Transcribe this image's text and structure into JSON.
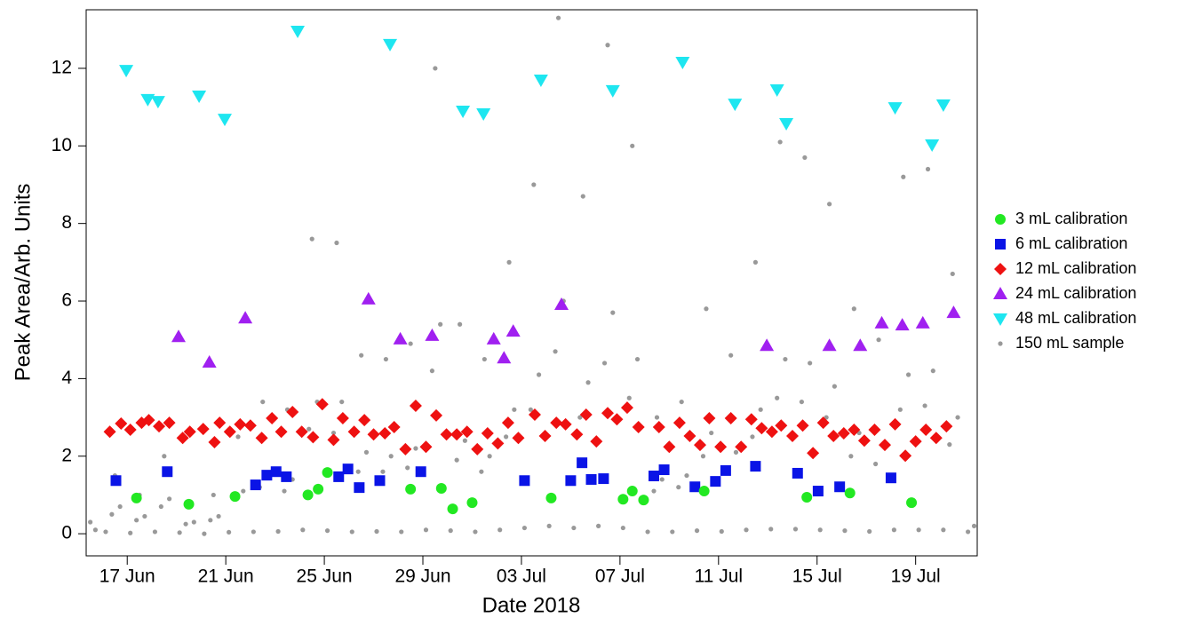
{
  "chart_data": {
    "type": "scatter",
    "xlabel": "Date 2018",
    "ylabel": "Peak Area/Arb. Units",
    "xlim": [
      "2018-06-15 08:00",
      "2018-07-21 12:00"
    ],
    "xticks": [
      {
        "value": "2018-06-17",
        "label": "17 Jun"
      },
      {
        "value": "2018-06-21",
        "label": "21 Jun"
      },
      {
        "value": "2018-06-25",
        "label": "25 Jun"
      },
      {
        "value": "2018-06-29",
        "label": "29 Jun"
      },
      {
        "value": "2018-07-03",
        "label": "03 Jul"
      },
      {
        "value": "2018-07-07",
        "label": "07 Jul"
      },
      {
        "value": "2018-07-11",
        "label": "11 Jul"
      },
      {
        "value": "2018-07-15",
        "label": "15 Jul"
      },
      {
        "value": "2018-07-19",
        "label": "19 Jul"
      }
    ],
    "ylim": [
      -0.57,
      13.51
    ],
    "yticks": [
      0,
      2,
      4,
      6,
      8,
      10,
      12
    ],
    "series": [
      {
        "name": "3 mL calibration",
        "color": "#22e822",
        "marker": "circle",
        "x": [
          "2018-06-17 09:00",
          "2018-06-19 12:00",
          "2018-06-21 09:00",
          "2018-06-24 08:00",
          "2018-06-24 18:00",
          "2018-06-25 03:00",
          "2018-06-28 12:00",
          "2018-06-29 18:00",
          "2018-06-30 05:00",
          "2018-07-01 00:00",
          "2018-07-04 05:00",
          "2018-07-07 03:00",
          "2018-07-07 12:00",
          "2018-07-07 23:00",
          "2018-07-10 10:00",
          "2018-07-14 14:00",
          "2018-07-16 08:00",
          "2018-07-18 20:00"
        ],
        "values": [
          0.92,
          0.76,
          0.96,
          1.0,
          1.15,
          1.58,
          1.15,
          1.17,
          0.64,
          0.8,
          0.92,
          0.89,
          1.1,
          0.87,
          1.1,
          0.94,
          1.05,
          0.8
        ]
      },
      {
        "name": "6 mL calibration",
        "color": "#0a14e6",
        "marker": "square",
        "x": [
          "2018-06-16 13:00",
          "2018-06-18 15:00",
          "2018-06-22 05:00",
          "2018-06-22 16:00",
          "2018-06-23 01:00",
          "2018-06-23 11:00",
          "2018-06-25 14:00",
          "2018-06-25 23:00",
          "2018-06-26 10:00",
          "2018-06-27 06:00",
          "2018-06-28 22:00",
          "2018-07-03 03:00",
          "2018-07-05 00:00",
          "2018-07-05 11:00",
          "2018-07-05 20:00",
          "2018-07-06 08:00",
          "2018-07-08 09:00",
          "2018-07-08 19:00",
          "2018-07-10 01:00",
          "2018-07-10 21:00",
          "2018-07-11 07:00",
          "2018-07-12 12:00",
          "2018-07-14 05:00",
          "2018-07-15 01:00",
          "2018-07-15 22:00",
          "2018-07-18 00:00"
        ],
        "values": [
          1.37,
          1.6,
          1.26,
          1.51,
          1.6,
          1.47,
          1.47,
          1.67,
          1.19,
          1.37,
          1.6,
          1.37,
          1.37,
          1.83,
          1.4,
          1.42,
          1.49,
          1.65,
          1.21,
          1.35,
          1.63,
          1.74,
          1.56,
          1.1,
          1.21,
          1.44
        ]
      },
      {
        "name": "12 mL calibration",
        "color": "#ee1111",
        "marker": "diamond",
        "x": [
          "2018-06-16 07:00",
          "2018-06-16 18:00",
          "2018-06-17 03:00",
          "2018-06-17 14:00",
          "2018-06-17 21:00",
          "2018-06-18 07:00",
          "2018-06-18 17:00",
          "2018-06-19 06:00",
          "2018-06-19 13:00",
          "2018-06-20 02:00",
          "2018-06-20 13:00",
          "2018-06-20 18:00",
          "2018-06-21 04:00",
          "2018-06-21 14:00",
          "2018-06-22 00:00",
          "2018-06-22 11:00",
          "2018-06-22 21:00",
          "2018-06-23 06:00",
          "2018-06-23 17:00",
          "2018-06-24 02:00",
          "2018-06-24 13:00",
          "2018-06-24 22:00",
          "2018-06-25 09:00",
          "2018-06-25 18:00",
          "2018-06-26 05:00",
          "2018-06-26 15:00",
          "2018-06-27 00:00",
          "2018-06-27 11:00",
          "2018-06-27 20:00",
          "2018-06-28 07:00",
          "2018-06-28 17:00",
          "2018-06-29 03:00",
          "2018-06-29 13:00",
          "2018-06-29 23:00",
          "2018-06-30 09:00",
          "2018-06-30 19:00",
          "2018-07-01 05:00",
          "2018-07-01 15:00",
          "2018-07-02 01:00",
          "2018-07-02 11:00",
          "2018-07-02 21:00",
          "2018-07-03 13:00",
          "2018-07-03 23:00",
          "2018-07-04 10:00",
          "2018-07-04 19:00",
          "2018-07-05 06:00",
          "2018-07-05 15:00",
          "2018-07-06 01:00",
          "2018-07-06 12:00",
          "2018-07-06 21:00",
          "2018-07-07 07:00",
          "2018-07-07 18:00",
          "2018-07-08 14:00",
          "2018-07-09 00:00",
          "2018-07-09 10:00",
          "2018-07-09 20:00",
          "2018-07-10 06:00",
          "2018-07-10 15:00",
          "2018-07-11 02:00",
          "2018-07-11 12:00",
          "2018-07-11 22:00",
          "2018-07-12 08:00",
          "2018-07-12 18:00",
          "2018-07-13 04:00",
          "2018-07-13 13:00",
          "2018-07-14 00:00",
          "2018-07-14 10:00",
          "2018-07-14 20:00",
          "2018-07-15 06:00",
          "2018-07-15 16:00",
          "2018-07-16 02:00",
          "2018-07-16 12:00",
          "2018-07-16 22:00",
          "2018-07-17 08:00",
          "2018-07-17 18:00",
          "2018-07-18 04:00",
          "2018-07-18 14:00",
          "2018-07-19 00:00",
          "2018-07-19 10:00",
          "2018-07-19 20:00",
          "2018-07-20 06:00"
        ],
        "values": [
          2.63,
          2.84,
          2.68,
          2.86,
          2.93,
          2.77,
          2.86,
          2.47,
          2.63,
          2.7,
          2.36,
          2.86,
          2.63,
          2.82,
          2.79,
          2.47,
          2.98,
          2.63,
          3.14,
          2.63,
          2.49,
          3.34,
          2.42,
          2.98,
          2.63,
          2.93,
          2.56,
          2.59,
          2.75,
          2.18,
          3.3,
          2.24,
          3.05,
          2.56,
          2.56,
          2.63,
          2.18,
          2.59,
          2.33,
          2.86,
          2.47,
          3.07,
          2.52,
          2.86,
          2.82,
          2.56,
          3.07,
          2.38,
          3.11,
          2.95,
          3.25,
          2.75,
          2.75,
          2.24,
          2.86,
          2.52,
          2.29,
          2.98,
          2.24,
          2.98,
          2.24,
          2.95,
          2.72,
          2.63,
          2.79,
          2.52,
          2.79,
          2.08,
          2.86,
          2.52,
          2.59,
          2.68,
          2.4,
          2.68,
          2.29,
          2.82,
          2.01,
          2.38,
          2.68,
          2.47,
          2.77
        ]
      },
      {
        "name": "24 mL calibration",
        "color": "#a020f0",
        "marker": "triangle-up",
        "x": [
          "2018-06-19 02:00",
          "2018-06-20 08:00",
          "2018-06-21 19:00",
          "2018-06-26 19:00",
          "2018-06-28 02:00",
          "2018-06-29 09:00",
          "2018-07-01 21:00",
          "2018-07-02 07:00",
          "2018-07-02 16:00",
          "2018-07-04 15:00",
          "2018-07-12 23:00",
          "2018-07-15 12:00",
          "2018-07-16 18:00",
          "2018-07-17 15:00",
          "2018-07-18 11:00",
          "2018-07-19 07:00",
          "2018-07-20 13:00"
        ],
        "values": [
          5.08,
          4.42,
          5.56,
          6.05,
          5.02,
          5.11,
          5.02,
          4.53,
          5.22,
          5.91,
          4.85,
          4.85,
          4.85,
          5.43,
          5.38,
          5.43,
          5.7
        ]
      },
      {
        "name": "48 mL calibration",
        "color": "#1ee6f0",
        "marker": "triangle-down",
        "x": [
          "2018-06-16 23:00",
          "2018-06-17 20:00",
          "2018-06-18 06:00",
          "2018-06-19 22:00",
          "2018-06-20 23:00",
          "2018-06-23 22:00",
          "2018-06-27 16:00",
          "2018-06-30 15:00",
          "2018-07-01 11:00",
          "2018-07-03 19:00",
          "2018-07-06 17:00",
          "2018-07-09 13:00",
          "2018-07-11 16:00",
          "2018-07-13 09:00",
          "2018-07-13 18:00",
          "2018-07-18 04:00",
          "2018-07-19 16:00",
          "2018-07-20 03:00"
        ],
        "values": [
          11.95,
          11.2,
          11.15,
          11.29,
          10.69,
          12.96,
          12.62,
          10.9,
          10.83,
          11.7,
          11.43,
          12.16,
          11.08,
          11.45,
          10.58,
          10.99,
          10.03,
          11.06
        ]
      },
      {
        "name": "150 mL sample",
        "color": "#999999",
        "marker": "dot",
        "x": [
          "2018-06-15 12:00",
          "2018-06-15 17:00",
          "2018-06-16 03:00",
          "2018-06-16 09:00",
          "2018-06-16 12:00",
          "2018-06-16 17:00",
          "2018-06-17 03:00",
          "2018-06-17 09:00",
          "2018-06-17 12:00",
          "2018-06-17 17:00",
          "2018-06-18 03:00",
          "2018-06-18 09:00",
          "2018-06-18 12:00",
          "2018-06-18 17:00",
          "2018-06-19 03:00",
          "2018-06-19 09:00",
          "2018-06-19 12:00",
          "2018-06-19 17:00",
          "2018-06-20 03:00",
          "2018-06-20 09:00",
          "2018-06-20 12:00",
          "2018-06-20 17:00",
          "2018-06-21 03:00",
          "2018-06-21 09:00",
          "2018-06-21 12:00",
          "2018-06-21 17:00",
          "2018-06-22 03:00",
          "2018-06-22 09:00",
          "2018-06-22 12:00",
          "2018-06-22 17:00",
          "2018-06-23 03:00",
          "2018-06-23 09:00",
          "2018-06-23 12:00",
          "2018-06-23 17:00",
          "2018-06-24 03:00",
          "2018-06-24 09:00",
          "2018-06-24 12:00",
          "2018-06-24 17:00",
          "2018-06-25 03:00",
          "2018-06-25 09:00",
          "2018-06-25 12:00",
          "2018-06-25 17:00",
          "2018-06-26 03:00",
          "2018-06-26 09:00",
          "2018-06-26 12:00",
          "2018-06-26 17:00",
          "2018-06-27 03:00",
          "2018-06-27 09:00",
          "2018-06-27 12:00",
          "2018-06-27 17:00",
          "2018-06-28 03:00",
          "2018-06-28 09:00",
          "2018-06-28 12:00",
          "2018-06-28 17:00",
          "2018-06-29 03:00",
          "2018-06-29 09:00",
          "2018-06-29 12:00",
          "2018-06-29 17:00",
          "2018-06-30 03:00",
          "2018-06-30 09:00",
          "2018-06-30 12:00",
          "2018-06-30 17:00",
          "2018-07-01 03:00",
          "2018-07-01 09:00",
          "2018-07-01 12:00",
          "2018-07-01 17:00",
          "2018-07-02 03:00",
          "2018-07-02 09:00",
          "2018-07-02 12:00",
          "2018-07-02 17:00",
          "2018-07-03 03:00",
          "2018-07-03 09:00",
          "2018-07-03 12:00",
          "2018-07-03 17:00",
          "2018-07-04 03:00",
          "2018-07-04 09:00",
          "2018-07-04 12:00",
          "2018-07-04 17:00",
          "2018-07-05 03:00",
          "2018-07-05 09:00",
          "2018-07-05 12:00",
          "2018-07-05 17:00",
          "2018-07-06 03:00",
          "2018-07-06 09:00",
          "2018-07-06 12:00",
          "2018-07-06 17:00",
          "2018-07-07 03:00",
          "2018-07-07 09:00",
          "2018-07-07 12:00",
          "2018-07-07 17:00",
          "2018-07-08 03:00",
          "2018-07-08 09:00",
          "2018-07-08 12:00",
          "2018-07-08 17:00",
          "2018-07-09 03:00",
          "2018-07-09 09:00",
          "2018-07-09 12:00",
          "2018-07-09 17:00",
          "2018-07-10 03:00",
          "2018-07-10 09:00",
          "2018-07-10 12:00",
          "2018-07-10 17:00",
          "2018-07-11 03:00",
          "2018-07-11 09:00",
          "2018-07-11 12:00",
          "2018-07-11 17:00",
          "2018-07-12 03:00",
          "2018-07-12 09:00",
          "2018-07-12 12:00",
          "2018-07-12 17:00",
          "2018-07-13 03:00",
          "2018-07-13 09:00",
          "2018-07-13 12:00",
          "2018-07-13 17:00",
          "2018-07-14 03:00",
          "2018-07-14 09:00",
          "2018-07-14 12:00",
          "2018-07-14 17:00",
          "2018-07-15 03:00",
          "2018-07-15 09:00",
          "2018-07-15 12:00",
          "2018-07-15 17:00",
          "2018-07-16 03:00",
          "2018-07-16 09:00",
          "2018-07-16 12:00",
          "2018-07-16 17:00",
          "2018-07-17 03:00",
          "2018-07-17 09:00",
          "2018-07-17 12:00",
          "2018-07-17 17:00",
          "2018-07-18 03:00",
          "2018-07-18 09:00",
          "2018-07-18 12:00",
          "2018-07-18 17:00",
          "2018-07-19 03:00",
          "2018-07-19 09:00",
          "2018-07-19 12:00",
          "2018-07-19 17:00",
          "2018-07-20 03:00",
          "2018-07-20 09:00",
          "2018-07-20 12:00",
          "2018-07-20 17:00",
          "2018-07-21 03:00",
          "2018-07-21 09:00"
        ],
        "values": [
          0.3,
          0.1,
          0.05,
          0.5,
          1.5,
          0.7,
          0.02,
          0.35,
          1.0,
          0.45,
          0.05,
          0.7,
          2.0,
          0.9,
          0.03,
          0.25,
          0.7,
          0.3,
          0.0,
          0.35,
          1.0,
          0.45,
          0.04,
          0.9,
          2.5,
          1.1,
          0.05,
          1.2,
          3.4,
          1.5,
          0.06,
          1.1,
          3.2,
          1.4,
          0.1,
          2.7,
          7.6,
          3.4,
          0.08,
          2.6,
          7.5,
          3.4,
          0.05,
          1.6,
          4.6,
          2.1,
          0.06,
          1.6,
          4.5,
          2.0,
          0.05,
          1.7,
          4.9,
          2.2,
          0.1,
          4.2,
          12.0,
          5.4,
          0.08,
          1.9,
          5.4,
          2.4,
          0.05,
          1.6,
          4.5,
          2.0,
          0.1,
          2.5,
          7.0,
          3.2,
          0.15,
          3.2,
          9.0,
          4.1,
          0.2,
          4.7,
          13.3,
          6.0,
          0.15,
          3.0,
          8.7,
          3.9,
          0.2,
          4.4,
          12.6,
          5.7,
          0.15,
          3.5,
          10.0,
          4.5,
          0.05,
          1.1,
          3.0,
          1.4,
          0.05,
          1.2,
          3.4,
          1.5,
          0.08,
          2.0,
          5.8,
          2.6,
          0.06,
          1.6,
          4.6,
          2.1,
          0.1,
          2.5,
          7.0,
          3.2,
          0.12,
          3.5,
          10.1,
          4.5,
          0.12,
          3.4,
          9.7,
          4.4,
          0.1,
          3.0,
          8.5,
          3.8,
          0.08,
          2.0,
          5.8,
          2.6,
          0.06,
          1.8,
          5.0,
          2.3,
          0.1,
          3.2,
          9.2,
          4.1,
          0.1,
          3.3,
          9.4,
          4.2,
          0.1,
          2.3,
          6.7,
          3.0,
          0.05,
          0.2
        ]
      }
    ]
  }
}
